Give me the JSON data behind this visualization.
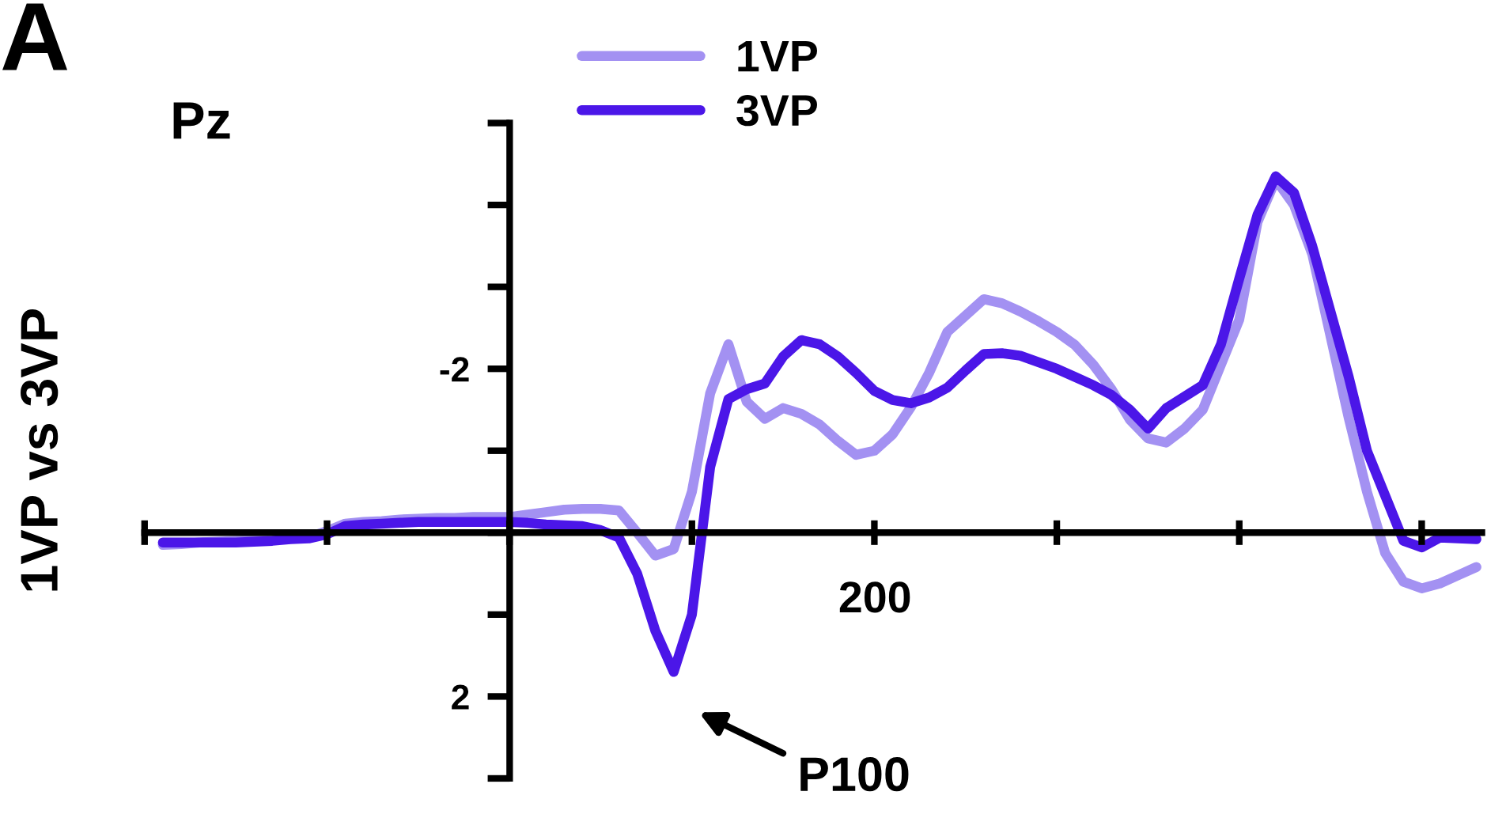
{
  "chart_data": {
    "type": "line",
    "ylabel": "1VP vs 3VP",
    "annotations": [
      "A",
      "Pz",
      "P100",
      "200"
    ],
    "categories": [
      null,
      null,
      null,
      null,
      null,
      null,
      null,
      null,
      null,
      null,
      null,
      null,
      null,
      null,
      null,
      null,
      null,
      null,
      null,
      null,
      null,
      null,
      null,
      null,
      null,
      null,
      null,
      null,
      null,
      null,
      null,
      null,
      null,
      null,
      null,
      null,
      null,
      null,
      null,
      null,
      null,
      null,
      null,
      null,
      null,
      null,
      null,
      null,
      null,
      null,
      null,
      null,
      null,
      null,
      null,
      null,
      null,
      null,
      null,
      null,
      null,
      null,
      null,
      null,
      null,
      null,
      null,
      null,
      null,
      null,
      null,
      null,
      null
    ],
    "ylim": [
      3,
      -5
    ],
    "yticks": [
      -2,
      2
    ],
    "grid": false,
    "legend": "top",
    "marker": "none",
    "line_style": "solid",
    "series": [
      {
        "name": "1VP",
        "color": "#a391f2",
        "values": [
          0.15,
          0.14,
          0.12,
          0.11,
          0.1,
          0.09,
          0.08,
          0.07,
          0.06,
          -0.02,
          -0.11,
          -0.13,
          -0.14,
          -0.16,
          -0.17,
          -0.18,
          -0.18,
          -0.19,
          -0.19,
          -0.19,
          -0.22,
          -0.25,
          -0.28,
          -0.29,
          -0.29,
          -0.27,
          0.0,
          0.28,
          0.2,
          -0.5,
          -1.7,
          -2.3,
          -1.6,
          -1.39,
          -1.52,
          -1.45,
          -1.32,
          -1.12,
          -0.95,
          -1.0,
          -1.2,
          -1.53,
          -1.95,
          -2.45,
          -2.65,
          -2.85,
          -2.8,
          -2.7,
          -2.58,
          -2.45,
          -2.29,
          -2.05,
          -1.75,
          -1.38,
          -1.15,
          -1.1,
          -1.27,
          -1.5,
          -2.05,
          -2.6,
          -3.79,
          -4.31,
          -4.0,
          -3.4,
          -2.4,
          -1.4,
          -0.5,
          0.25,
          0.6,
          0.68,
          0.62,
          0.52,
          0.42
        ]
      },
      {
        "name": "3VP",
        "color": "#4b16e8",
        "values": [
          0.12,
          0.12,
          0.12,
          0.12,
          0.12,
          0.11,
          0.1,
          0.08,
          0.07,
          0.02,
          -0.08,
          -0.1,
          -0.11,
          -0.12,
          -0.13,
          -0.13,
          -0.13,
          -0.13,
          -0.13,
          -0.13,
          -0.12,
          -0.1,
          -0.09,
          -0.08,
          -0.03,
          0.06,
          0.5,
          1.2,
          1.7,
          1.0,
          -0.8,
          -1.63,
          -1.75,
          -1.82,
          -2.15,
          -2.35,
          -2.3,
          -2.15,
          -1.95,
          -1.73,
          -1.62,
          -1.58,
          -1.65,
          -1.77,
          -1.98,
          -2.18,
          -2.19,
          -2.16,
          -2.08,
          -2.0,
          -1.9,
          -1.8,
          -1.68,
          -1.5,
          -1.27,
          -1.52,
          -1.66,
          -1.8,
          -2.3,
          -3.1,
          -3.88,
          -4.35,
          -4.15,
          -3.5,
          -2.7,
          -1.9,
          -1.0,
          -0.45,
          0.1,
          0.18,
          0.06,
          0.07,
          0.08
        ]
      }
    ]
  }
}
